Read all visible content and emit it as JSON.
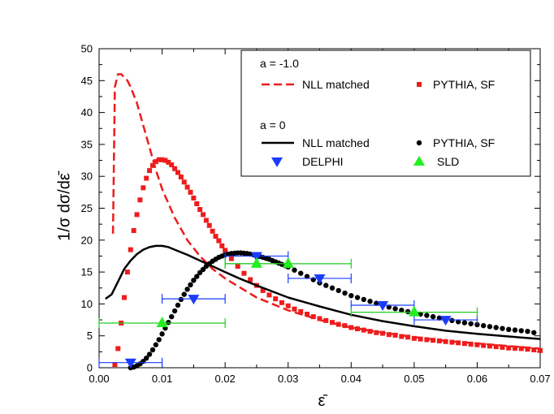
{
  "chart_data": {
    "type": "line",
    "title": "",
    "xlabel": "ε̄",
    "ylabel": "1/σ dσ/dε̄",
    "xlim": [
      0,
      0.07
    ],
    "ylim": [
      0,
      50
    ],
    "grid": false,
    "legend_position": "top-right",
    "x_ticks": [
      "0.00",
      "0.01",
      "0.02",
      "0.03",
      "0.04",
      "0.05",
      "0.06",
      "0.07"
    ],
    "y_ticks": [
      "0",
      "5",
      "10",
      "15",
      "20",
      "25",
      "30",
      "35",
      "40",
      "45",
      "50"
    ],
    "legend": {
      "group1_header": "a = -1.0",
      "group2_header": "a = 0",
      "nll_label_1": "NLL matched",
      "pythia_label_1": "PYTHIA, SF",
      "nll_label_2": "NLL matched",
      "pythia_label_2": "PYTHIA, SF",
      "delphi_label": "DELPHI",
      "sld_label": "SLD"
    },
    "series": [
      {
        "key": "nll_a_m1",
        "style": "dashed-line",
        "color": "#ee1c1c",
        "x": [
          0.0022,
          0.0025,
          0.003,
          0.0035,
          0.004,
          0.0045,
          0.005,
          0.006,
          0.007,
          0.008,
          0.009,
          0.01,
          0.012,
          0.014,
          0.016,
          0.018,
          0.02,
          0.025,
          0.03,
          0.035,
          0.04,
          0.045,
          0.05,
          0.055,
          0.06,
          0.065,
          0.07
        ],
        "y": [
          21,
          44,
          46,
          46,
          45.5,
          45,
          44,
          41.5,
          38,
          34.5,
          31,
          28,
          23.5,
          20,
          17.5,
          15.5,
          14,
          11,
          9,
          7.5,
          6.3,
          5.5,
          4.8,
          4.2,
          3.8,
          3.4,
          3
        ]
      },
      {
        "key": "pythia_a_m1",
        "style": "square-markers",
        "color": "#ee1c1c",
        "x": [
          0.0025,
          0.003,
          0.0035,
          0.004,
          0.0045,
          0.005,
          0.0055,
          0.006,
          0.0065,
          0.007,
          0.0075,
          0.008,
          0.0085,
          0.009,
          0.0095,
          0.01,
          0.0105,
          0.011,
          0.0115,
          0.012,
          0.0125,
          0.013,
          0.0135,
          0.014,
          0.0145,
          0.015,
          0.0155,
          0.016,
          0.0165,
          0.017,
          0.0175,
          0.018,
          0.0185,
          0.019,
          0.0195,
          0.02,
          0.021,
          0.022,
          0.023,
          0.024,
          0.025,
          0.026,
          0.027,
          0.028,
          0.029,
          0.03,
          0.031,
          0.032,
          0.033,
          0.034,
          0.035,
          0.036,
          0.037,
          0.038,
          0.039,
          0.04,
          0.041,
          0.042,
          0.043,
          0.044,
          0.045,
          0.046,
          0.047,
          0.048,
          0.049,
          0.05,
          0.051,
          0.052,
          0.053,
          0.054,
          0.055,
          0.056,
          0.057,
          0.058,
          0.059,
          0.06,
          0.061,
          0.062,
          0.063,
          0.064,
          0.065,
          0.066,
          0.067,
          0.068,
          0.069,
          0.07
        ],
        "y": [
          0.5,
          3,
          7,
          11,
          15,
          18.5,
          21.5,
          24,
          26.3,
          28.2,
          29.7,
          30.9,
          31.7,
          32.3,
          32.6,
          32.6,
          32.5,
          32.2,
          31.8,
          31.2,
          30.6,
          29.9,
          29.1,
          28.3,
          27.5,
          26.6,
          25.7,
          24.8,
          24,
          23.1,
          22.3,
          21.4,
          20.6,
          19.9,
          19.1,
          18.4,
          17.1,
          15.9,
          14.8,
          13.8,
          12.9,
          12.1,
          11.4,
          10.8,
          10.2,
          9.7,
          9.2,
          8.8,
          8.4,
          8,
          7.7,
          7.4,
          7.1,
          6.8,
          6.6,
          6.3,
          6.1,
          5.9,
          5.7,
          5.5,
          5.4,
          5.2,
          5.1,
          4.9,
          4.8,
          4.6,
          4.5,
          4.4,
          4.3,
          4.2,
          4.1,
          4,
          3.9,
          3.8,
          3.7,
          3.6,
          3.5,
          3.4,
          3.3,
          3.2,
          3.1,
          3.05,
          3,
          2.9,
          2.8,
          2.7
        ]
      },
      {
        "key": "nll_a_0",
        "style": "solid-line",
        "color": "#000000",
        "x": [
          0.001,
          0.002,
          0.003,
          0.004,
          0.005,
          0.006,
          0.007,
          0.008,
          0.009,
          0.01,
          0.011,
          0.012,
          0.014,
          0.016,
          0.018,
          0.02,
          0.022,
          0.025,
          0.03,
          0.035,
          0.04,
          0.045,
          0.05,
          0.055,
          0.06,
          0.065,
          0.07
        ],
        "y": [
          10.8,
          11.5,
          13.5,
          15.5,
          16.8,
          17.8,
          18.5,
          18.9,
          19.1,
          19.1,
          18.9,
          18.5,
          17.7,
          16.8,
          15.9,
          15,
          14.1,
          12.9,
          11,
          9.6,
          8.3,
          7.3,
          6.5,
          5.8,
          5.3,
          4.9,
          4.5
        ]
      },
      {
        "key": "pythia_a_0",
        "style": "dot-markers",
        "color": "#000000",
        "x": [
          0.005,
          0.0055,
          0.006,
          0.0065,
          0.007,
          0.0075,
          0.008,
          0.0085,
          0.009,
          0.0095,
          0.01,
          0.0105,
          0.011,
          0.0115,
          0.012,
          0.0125,
          0.013,
          0.0135,
          0.014,
          0.0145,
          0.015,
          0.0155,
          0.016,
          0.0165,
          0.017,
          0.0175,
          0.018,
          0.0185,
          0.019,
          0.0195,
          0.02,
          0.0205,
          0.021,
          0.0215,
          0.022,
          0.0225,
          0.023,
          0.0235,
          0.024,
          0.0245,
          0.025,
          0.0255,
          0.026,
          0.0265,
          0.027,
          0.0275,
          0.028,
          0.0285,
          0.029,
          0.0295,
          0.03,
          0.031,
          0.032,
          0.033,
          0.034,
          0.035,
          0.036,
          0.037,
          0.038,
          0.039,
          0.04,
          0.041,
          0.042,
          0.043,
          0.044,
          0.045,
          0.046,
          0.047,
          0.048,
          0.049,
          0.05,
          0.051,
          0.052,
          0.053,
          0.054,
          0.055,
          0.056,
          0.057,
          0.058,
          0.059,
          0.06,
          0.061,
          0.062,
          0.063,
          0.064,
          0.065,
          0.066,
          0.067,
          0.068,
          0.069
        ],
        "y": [
          0,
          0.1,
          0.3,
          0.6,
          1,
          1.5,
          2.1,
          2.8,
          3.6,
          4.4,
          5.3,
          6.2,
          7.1,
          8,
          8.9,
          9.8,
          10.7,
          11.5,
          12.3,
          13,
          13.7,
          14.3,
          14.9,
          15.4,
          15.9,
          16.3,
          16.7,
          17,
          17.3,
          17.5,
          17.7,
          17.8,
          17.9,
          17.95,
          18,
          18,
          17.95,
          17.9,
          17.8,
          17.7,
          17.6,
          17.45,
          17.3,
          17.15,
          17,
          16.8,
          16.6,
          16.4,
          16.2,
          16,
          15.8,
          15.3,
          14.8,
          14.3,
          13.8,
          13.3,
          12.9,
          12.5,
          12.1,
          11.7,
          11.3,
          11,
          10.7,
          10.4,
          10.1,
          9.8,
          9.5,
          9.25,
          9,
          8.8,
          8.6,
          8.4,
          8.2,
          8,
          7.8,
          7.6,
          7.4,
          7.2,
          7.05,
          6.9,
          6.75,
          6.6,
          6.45,
          6.3,
          6.15,
          6,
          5.9,
          5.8,
          5.7,
          5.5
        ]
      }
    ],
    "points": [
      {
        "key": "delphi",
        "marker": "triangle-down",
        "color": "#1a3cff",
        "x": [
          0.005,
          0.015,
          0.025,
          0.035,
          0.045,
          0.055
        ],
        "y": [
          0.8,
          10.8,
          17.5,
          14,
          9.8,
          7.5
        ],
        "xerr": [
          0.005,
          0.005,
          0.005,
          0.005,
          0.005,
          0.005
        ],
        "errcolor": "#1a3cff"
      },
      {
        "key": "sld",
        "marker": "triangle-up",
        "color": "#22ee22",
        "x": [
          0.01,
          0.025,
          0.03,
          0.05
        ],
        "y": [
          7,
          16.3,
          16.3,
          8.7
        ],
        "xerr": [
          0.01,
          0.005,
          0.01,
          0.01
        ],
        "errcolor": "#22cc22"
      }
    ]
  }
}
